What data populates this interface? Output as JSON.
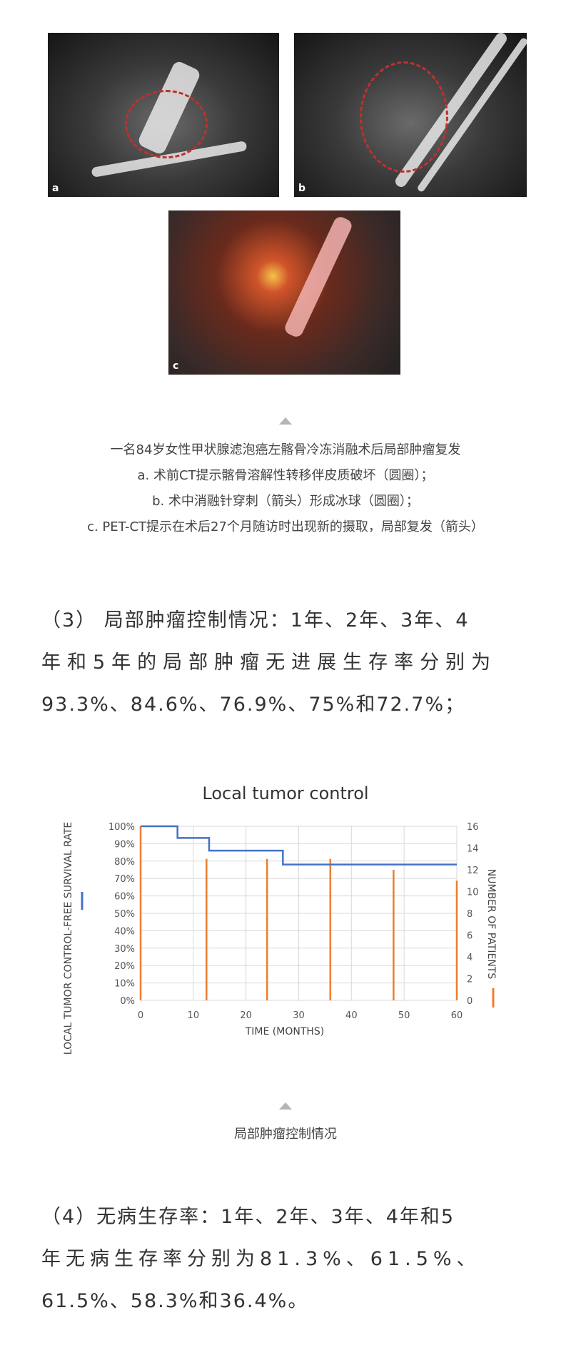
{
  "figure1": {
    "panels": [
      {
        "label": "a"
      },
      {
        "label": "b"
      },
      {
        "label": "c"
      }
    ],
    "caption": [
      "一名84岁女性甲状腺滤泡癌左髂骨冷冻消融术后局部肿瘤复发",
      "a. 术前CT提示髂骨溶解性转移伴皮质破坏（圆圈）；",
      "b. 术中消融针穿刺（箭头）形成冰球（圆圈）；",
      "c. PET-CT提示在术后27个月随访时出现新的摄取，局部复发（箭头）"
    ]
  },
  "paragraph3": [
    "（3） 局部肿瘤控制情况：1年、2年、3年、4",
    "年和5年的局部肿瘤无进展生存率分别为",
    "93.3%、84.6%、76.9%、75%和72.7%；"
  ],
  "chart_data": {
    "type": "line",
    "title": "Local tumor control",
    "xlabel": "TIME (MONTHS)",
    "ylabel": "LOCAL TUMOR CONTROL-FREE SURVIVAL RATE",
    "y2label": "NUMBER OF PATIENTS",
    "xlim": [
      0,
      60
    ],
    "ylim": [
      0,
      100
    ],
    "y2lim": [
      0,
      16
    ],
    "xticks": [
      "0",
      "10",
      "20",
      "30",
      "40",
      "50",
      "60"
    ],
    "yticks": [
      "0%",
      "10%",
      "20%",
      "30%",
      "40%",
      "50%",
      "60%",
      "70%",
      "80%",
      "90%",
      "100%"
    ],
    "y2ticks": [
      "0",
      "2",
      "4",
      "6",
      "8",
      "10",
      "12",
      "14",
      "16"
    ],
    "grid": true,
    "colors": {
      "survival": "#4472c4",
      "patients": "#ed7d31"
    },
    "survival_steps": {
      "x": [
        0,
        7,
        13,
        27,
        60
      ],
      "y": [
        100,
        93.3,
        86,
        78,
        78
      ]
    },
    "patients_bars": {
      "x": [
        0,
        12.5,
        24,
        36,
        48,
        60
      ],
      "y": [
        16,
        13,
        13,
        13,
        12,
        11
      ]
    }
  },
  "figure2": {
    "caption": "局部肿瘤控制情况"
  },
  "paragraph4": [
    "（4）无病生存率：1年、2年、3年、4年和5",
    "年无病生存率分别为81.3%、61.5%、",
    "61.5%、58.3%和36.4%。"
  ]
}
